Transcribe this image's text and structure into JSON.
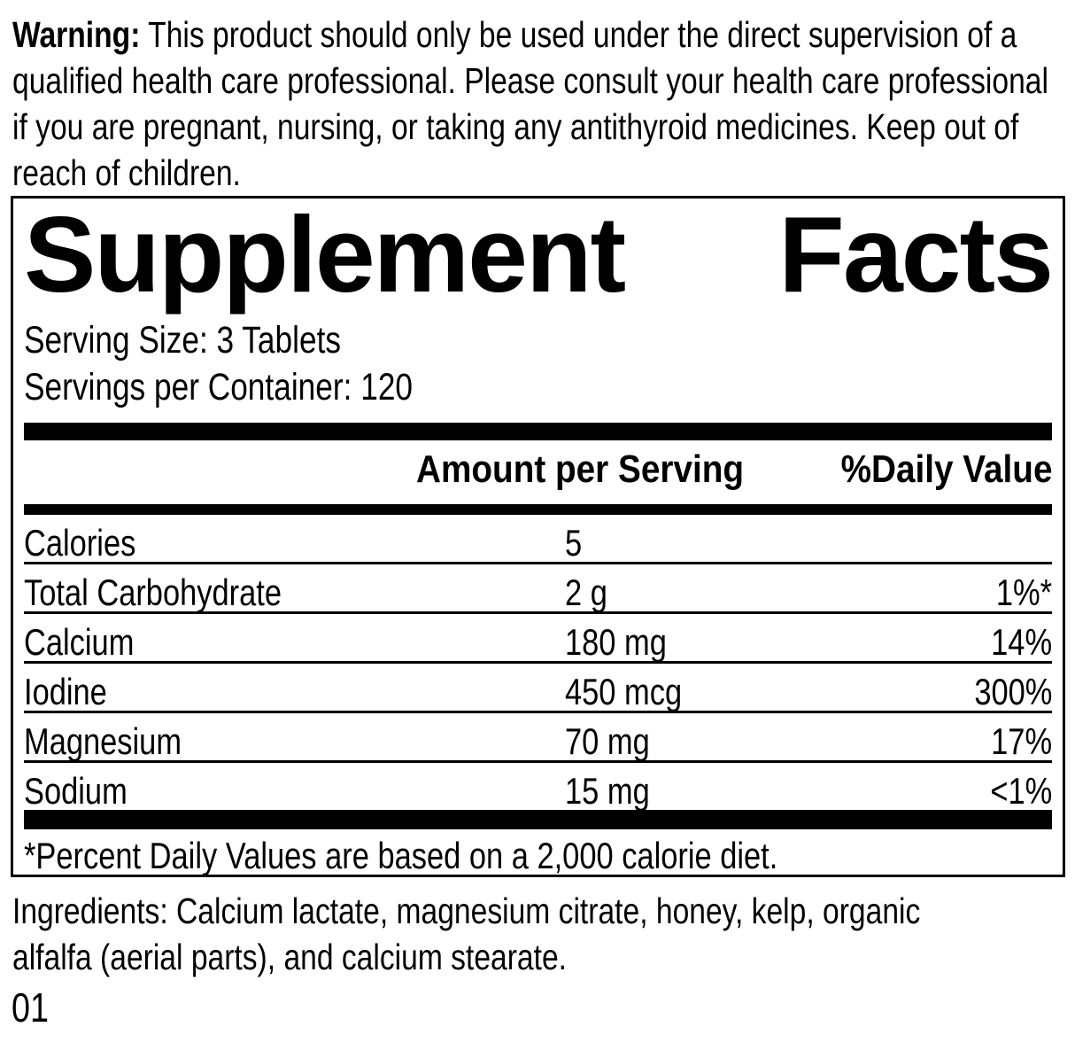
{
  "warning": {
    "label": "Warning:",
    "text": " This product should only be used under the direct supervision of a qualified health care professional. Please consult your health care professional if you are pregnant, nursing, or taking any antithyroid medicines. Keep out of reach of children."
  },
  "panel": {
    "title_left": "Supplement",
    "title_right": "Facts",
    "serving_size": "Serving Size: 3 Tablets",
    "servings_per_container": "Servings per Container: 120",
    "columns": {
      "amount": "Amount per Serving",
      "daily_value": "%Daily Value"
    },
    "rows": [
      {
        "name": "Calories",
        "amount": "5",
        "daily_value": ""
      },
      {
        "name": "Total Carbohydrate",
        "amount": "2 g",
        "daily_value": "1%*"
      },
      {
        "name": "Calcium",
        "amount": "180 mg",
        "daily_value": "14%"
      },
      {
        "name": "Iodine",
        "amount": "450 mcg",
        "daily_value": "300%"
      },
      {
        "name": "Magnesium",
        "amount": "70 mg",
        "daily_value": "17%"
      },
      {
        "name": "Sodium",
        "amount": "15 mg",
        "daily_value": "<1%"
      }
    ],
    "footnote": "*Percent Daily Values are based on a 2,000 calorie diet."
  },
  "ingredients": "Ingredients: Calcium lactate, magnesium citrate, honey, kelp, organic alfalfa (aerial parts), and calcium stearate.",
  "footer_code": "01",
  "colors": {
    "ink": "#000000",
    "paper": "#ffffff"
  }
}
